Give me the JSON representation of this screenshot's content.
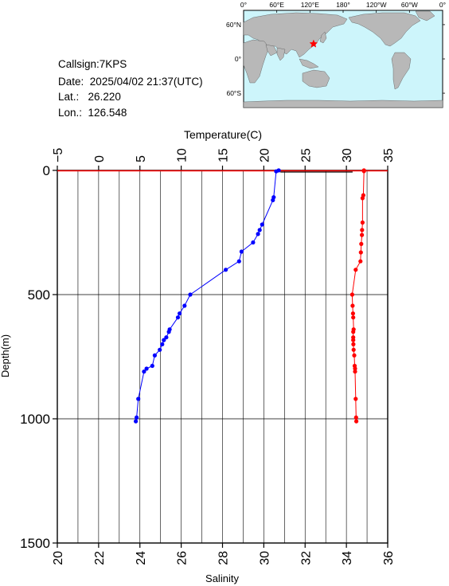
{
  "station": {
    "callsign_label": "Callsign:",
    "callsign": "7KPS",
    "date_label": "Date:",
    "date": "2025/04/02 21:37(UTC)",
    "lat_label": "Lat.:",
    "lat": "26.220",
    "lon_label": "Lon.:",
    "lon": "126.548"
  },
  "map": {
    "lon_ticks": [
      "0°",
      "60°E",
      "120°E",
      "180°",
      "120°W",
      "60°W",
      "0°"
    ],
    "lat_ticks": [
      "60°N",
      "0°",
      "60°S"
    ],
    "ocean_color": "#cdf5fb",
    "land_color": "#b8b8b8",
    "marker": {
      "lon": 126.548,
      "lat": 26.22,
      "color": "#ff0000"
    }
  },
  "chart_data": {
    "type": "line",
    "y_axis": {
      "label": "Depth(m)",
      "range": [
        0,
        1500
      ],
      "inverted": true,
      "ticks": [
        0,
        500,
        1000,
        1500
      ],
      "grid": true
    },
    "top_axis": {
      "label": "Temperature(C)",
      "range": [
        -5,
        35
      ],
      "ticks": [
        -5,
        0,
        5,
        10,
        15,
        20,
        25,
        30,
        35
      ]
    },
    "bottom_axis": {
      "label": "Salinity",
      "range": [
        20,
        36
      ],
      "ticks": [
        20,
        22,
        24,
        26,
        28,
        30,
        32,
        34,
        36
      ]
    },
    "series": [
      {
        "name": "Temperature(C)",
        "axis": "top",
        "color": "#0000ff",
        "points": [
          [
            21.8,
            0
          ],
          [
            21.5,
            4
          ],
          [
            21.2,
            108
          ],
          [
            21.1,
            120
          ],
          [
            19.8,
            218
          ],
          [
            19.5,
            240
          ],
          [
            19.3,
            256
          ],
          [
            18.7,
            290
          ],
          [
            17.3,
            327
          ],
          [
            17.0,
            366
          ],
          [
            15.4,
            400
          ],
          [
            11.1,
            500
          ],
          [
            10.4,
            545
          ],
          [
            9.8,
            576
          ],
          [
            9.6,
            592
          ],
          [
            8.6,
            640
          ],
          [
            8.5,
            650
          ],
          [
            8.2,
            672
          ],
          [
            7.9,
            683
          ],
          [
            7.7,
            700
          ],
          [
            7.4,
            722
          ],
          [
            6.8,
            745
          ],
          [
            6.5,
            787
          ],
          [
            5.8,
            798
          ],
          [
            5.5,
            810
          ],
          [
            4.8,
            920
          ],
          [
            4.6,
            995
          ],
          [
            4.5,
            1010
          ]
        ]
      },
      {
        "name": "Salinity",
        "axis": "bottom",
        "color": "#ff0000",
        "points": [
          [
            34.85,
            0
          ],
          [
            34.85,
            3
          ],
          [
            34.82,
            100
          ],
          [
            34.78,
            112
          ],
          [
            34.78,
            210
          ],
          [
            34.76,
            240
          ],
          [
            34.75,
            260
          ],
          [
            34.72,
            296
          ],
          [
            34.7,
            330
          ],
          [
            34.68,
            366
          ],
          [
            34.45,
            400
          ],
          [
            34.28,
            500
          ],
          [
            34.3,
            545
          ],
          [
            34.32,
            576
          ],
          [
            34.33,
            592
          ],
          [
            34.35,
            640
          ],
          [
            34.33,
            650
          ],
          [
            34.33,
            672
          ],
          [
            34.33,
            683
          ],
          [
            34.34,
            700
          ],
          [
            34.35,
            722
          ],
          [
            34.38,
            745
          ],
          [
            34.4,
            787
          ],
          [
            34.42,
            798
          ],
          [
            34.42,
            810
          ],
          [
            34.45,
            920
          ],
          [
            34.47,
            995
          ],
          [
            34.48,
            1010
          ]
        ]
      }
    ],
    "surface_line": {
      "depth": 0,
      "from_temp": 22.0,
      "to_sal": 34.3,
      "color": "#ff0000"
    }
  }
}
